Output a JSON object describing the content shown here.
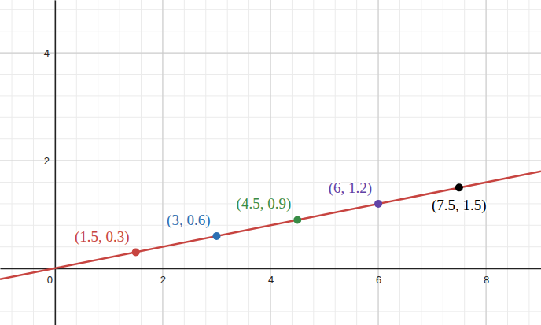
{
  "chart_data": {
    "type": "line",
    "xlim": [
      -1.02,
      9.02
    ],
    "ylim": [
      -1.05,
      4.98
    ],
    "xticks": [
      0,
      2,
      4,
      6,
      8
    ],
    "yticks": [
      2,
      4
    ],
    "grid": true,
    "series": [
      {
        "type": "line",
        "color": "#c74440",
        "x": [
          -1.02,
          9.02
        ],
        "values": [
          -0.2,
          1.8
        ]
      },
      {
        "type": "scatter",
        "marker": "circle",
        "x": [
          1.5,
          3,
          4.5,
          6,
          7.5
        ],
        "values": [
          0.3,
          0.6,
          0.9,
          1.2,
          1.5
        ],
        "colors": [
          "#c74440",
          "#2d70b3",
          "#388c46",
          "#6042a6",
          "#000000"
        ],
        "value_labels": [
          "(1.5, 0.3)",
          "(3, 0.6)",
          "(4.5, 0.9)",
          "(6, 1.2)",
          "(7.5, 1.5)"
        ],
        "data_labels": true
      }
    ]
  }
}
